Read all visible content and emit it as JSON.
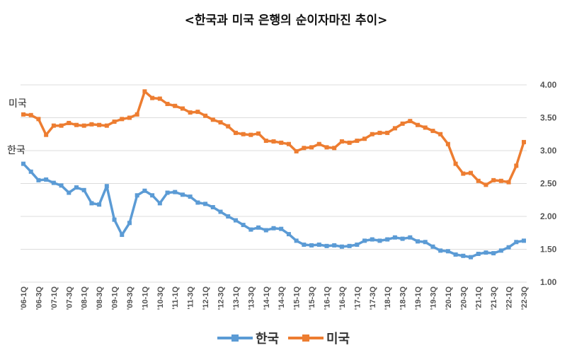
{
  "chart_data": {
    "type": "line",
    "title": "<한국과 미국 은행의 순이자마진 추이>",
    "ylim": [
      1.0,
      4.0
    ],
    "yticks": [
      "1.00",
      "1.50",
      "2.00",
      "2.50",
      "3.00",
      "3.50",
      "4.00"
    ],
    "grid": true,
    "legend_position": "bottom",
    "x_tick_labels": [
      "'06-1Q",
      "'06-3Q",
      "'07-1Q",
      "'07-3Q",
      "'08-1Q",
      "'08-3Q",
      "'09-1Q",
      "'09-3Q",
      "'10-1Q",
      "'10-3Q",
      "'11-1Q",
      "'11-3Q",
      "'12-1Q",
      "'12-3Q",
      "'13-1Q",
      "'13-3Q",
      "'14-1Q",
      "'14-3Q",
      "'15-1Q",
      "'15-3Q",
      "'16-1Q",
      "'16-3Q",
      "'17-1Q",
      "'17-3Q",
      "'18-1Q",
      "'18-3Q",
      "'19-1Q",
      "'19-3Q",
      "'20-1Q",
      "'20-3Q",
      "'21-1Q",
      "'21-3Q",
      "'22-1Q",
      "'22-3Q"
    ],
    "x": [
      "'06-1Q",
      "'06-2Q",
      "'06-3Q",
      "'06-4Q",
      "'07-1Q",
      "'07-2Q",
      "'07-3Q",
      "'07-4Q",
      "'08-1Q",
      "'08-2Q",
      "'08-3Q",
      "'08-4Q",
      "'09-1Q",
      "'09-2Q",
      "'09-3Q",
      "'09-4Q",
      "'10-1Q",
      "'10-2Q",
      "'10-3Q",
      "'10-4Q",
      "'11-1Q",
      "'11-2Q",
      "'11-3Q",
      "'11-4Q",
      "'12-1Q",
      "'12-2Q",
      "'12-3Q",
      "'12-4Q",
      "'13-1Q",
      "'13-2Q",
      "'13-3Q",
      "'13-4Q",
      "'14-1Q",
      "'14-2Q",
      "'14-3Q",
      "'14-4Q",
      "'15-1Q",
      "'15-2Q",
      "'15-3Q",
      "'15-4Q",
      "'16-1Q",
      "'16-2Q",
      "'16-3Q",
      "'16-4Q",
      "'17-1Q",
      "'17-2Q",
      "'17-3Q",
      "'17-4Q",
      "'18-1Q",
      "'18-2Q",
      "'18-3Q",
      "'18-4Q",
      "'19-1Q",
      "'19-2Q",
      "'19-3Q",
      "'19-4Q",
      "'20-1Q",
      "'20-2Q",
      "'20-3Q",
      "'20-4Q",
      "'21-1Q",
      "'21-2Q",
      "'21-3Q",
      "'21-4Q",
      "'22-1Q",
      "'22-2Q",
      "'22-3Q"
    ],
    "series": [
      {
        "name": "한국",
        "color": "#5b9bd5",
        "values": [
          2.8,
          2.68,
          2.55,
          2.56,
          2.51,
          2.47,
          2.36,
          2.44,
          2.4,
          2.2,
          2.18,
          2.46,
          1.95,
          1.72,
          1.9,
          2.32,
          2.39,
          2.32,
          2.2,
          2.36,
          2.37,
          2.33,
          2.3,
          2.21,
          2.19,
          2.14,
          2.07,
          2.0,
          1.94,
          1.87,
          1.8,
          1.83,
          1.79,
          1.82,
          1.81,
          1.73,
          1.63,
          1.57,
          1.56,
          1.57,
          1.55,
          1.56,
          1.54,
          1.55,
          1.57,
          1.63,
          1.65,
          1.63,
          1.65,
          1.68,
          1.66,
          1.68,
          1.62,
          1.61,
          1.54,
          1.48,
          1.47,
          1.42,
          1.4,
          1.38,
          1.43,
          1.45,
          1.44,
          1.48,
          1.53,
          1.61,
          1.63
        ]
      },
      {
        "name": "미국",
        "color": "#ed7d31",
        "values": [
          3.55,
          3.54,
          3.48,
          3.24,
          3.38,
          3.38,
          3.42,
          3.39,
          3.38,
          3.4,
          3.39,
          3.38,
          3.44,
          3.48,
          3.5,
          3.55,
          3.9,
          3.8,
          3.79,
          3.71,
          3.68,
          3.64,
          3.58,
          3.59,
          3.53,
          3.47,
          3.43,
          3.37,
          3.27,
          3.25,
          3.24,
          3.26,
          3.15,
          3.14,
          3.12,
          3.1,
          2.99,
          3.04,
          3.05,
          3.1,
          3.05,
          3.04,
          3.14,
          3.12,
          3.15,
          3.18,
          3.25,
          3.27,
          3.27,
          3.34,
          3.41,
          3.45,
          3.39,
          3.35,
          3.3,
          3.25,
          3.1,
          2.8,
          2.65,
          2.66,
          2.54,
          2.48,
          2.55,
          2.54,
          2.52,
          2.77,
          3.13
        ]
      }
    ],
    "side_labels": {
      "us": "미국",
      "kr": "한국"
    }
  }
}
